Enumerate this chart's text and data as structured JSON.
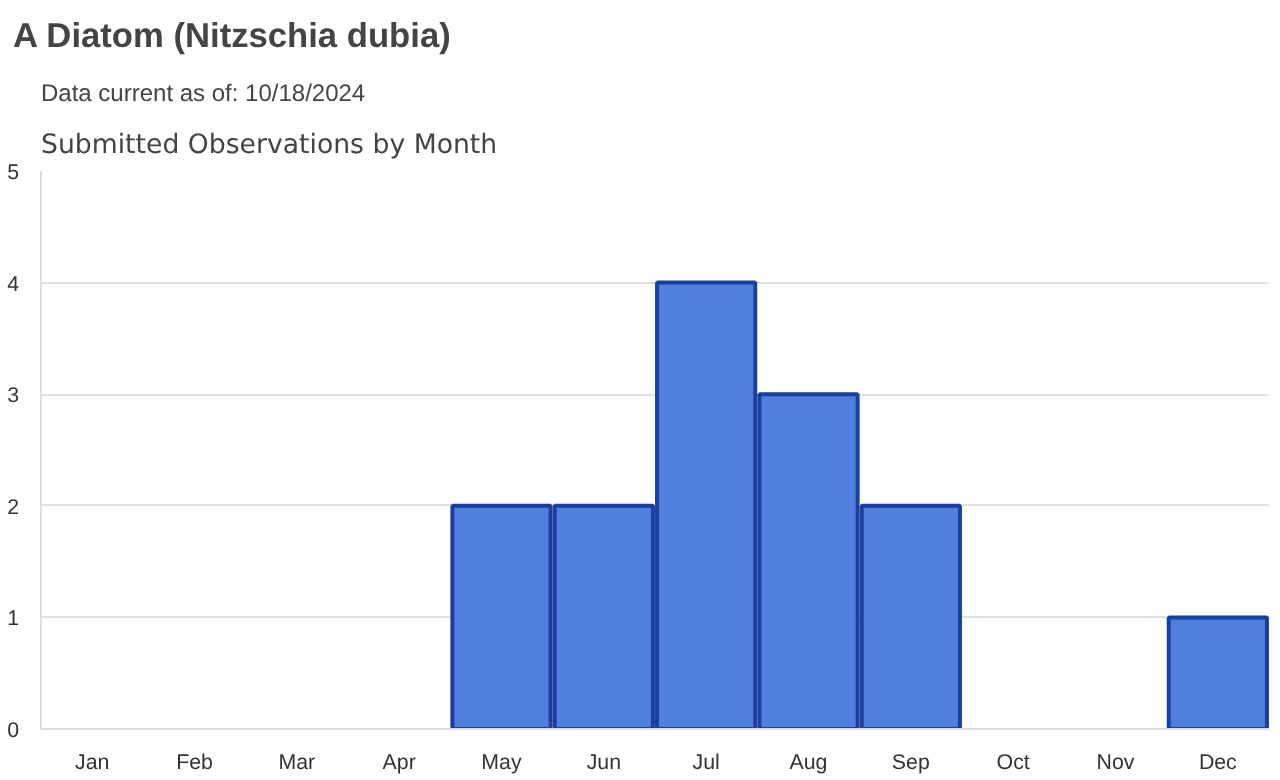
{
  "chart_data": {
    "type": "bar",
    "title": "A Diatom   (Nitzschia dubia)",
    "subtitle": "Data current as of: 10/18/2024",
    "annotations": [
      "Submitted Observations by Month"
    ],
    "categories": [
      "Jan",
      "Feb",
      "Mar",
      "Apr",
      "May",
      "Jun",
      "Jul",
      "Aug",
      "Sep",
      "Oct",
      "Nov",
      "Dec"
    ],
    "values": [
      0,
      0,
      0,
      0,
      2,
      2,
      4,
      3,
      2,
      0,
      0,
      1
    ],
    "color": "#4f80e0",
    "ylim": [
      0,
      5
    ],
    "yticks": [
      0,
      1,
      2,
      3,
      4,
      5
    ],
    "grid": "y"
  }
}
